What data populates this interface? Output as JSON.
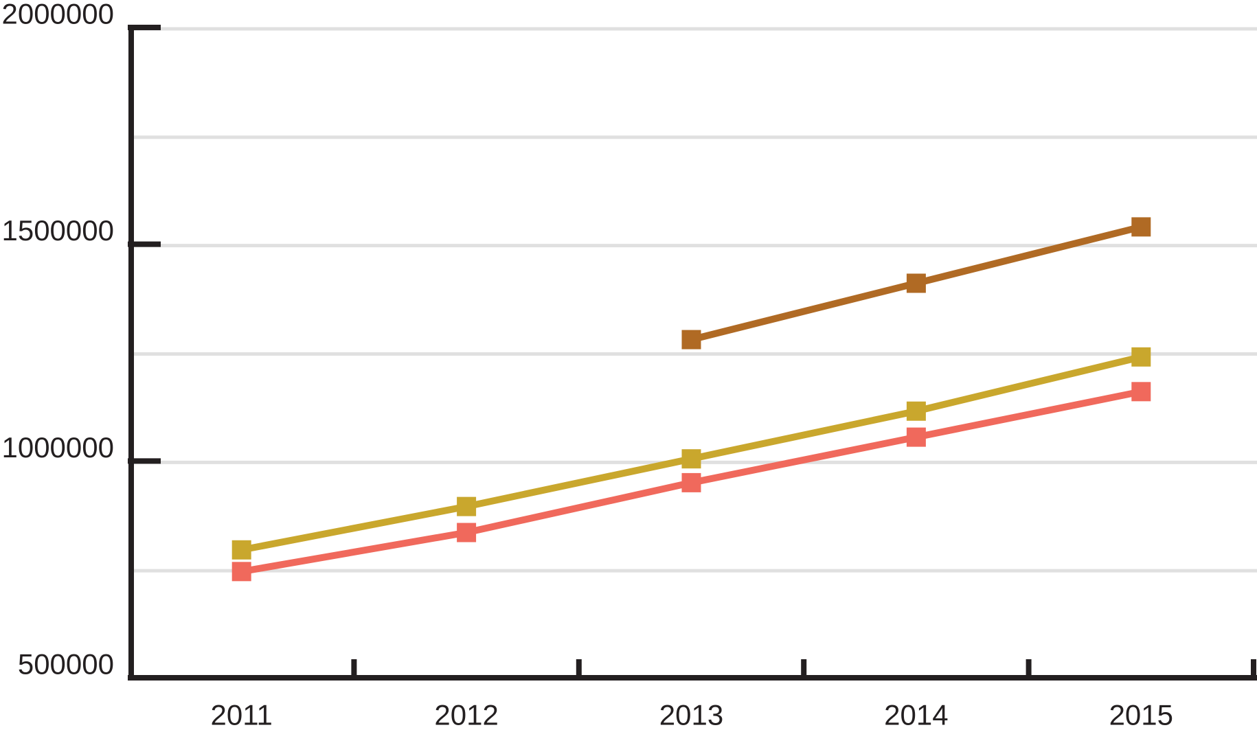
{
  "page": {
    "background": "#FFFFFF"
  },
  "chart_data": {
    "type": "line",
    "title": "",
    "xlabel": "",
    "ylabel": "",
    "categories": [
      "2011",
      "2012",
      "2013",
      "2014",
      "2015"
    ],
    "series": [
      {
        "name": "brown",
        "color": "#B06A24",
        "values": [
          null,
          null,
          1280000,
          1410000,
          1540000
        ]
      },
      {
        "name": "yellow",
        "color": "#C9A72D",
        "values": [
          795000,
          895000,
          1005000,
          1115000,
          1240000
        ]
      },
      {
        "name": "red",
        "color": "#F0695C",
        "values": [
          745000,
          835000,
          950000,
          1055000,
          1160000
        ]
      }
    ],
    "ylim": [
      500000,
      2000000
    ],
    "y_ticks": [
      500000,
      1000000,
      1500000,
      2000000
    ],
    "y_tick_labels": [
      "500000",
      "1000000",
      "1500000",
      "2000000"
    ],
    "gridline_interval": 250000,
    "grid": true,
    "legend": "none",
    "marker": "square",
    "axis_color": "#231F20",
    "grid_color": "#E0E0E0"
  }
}
